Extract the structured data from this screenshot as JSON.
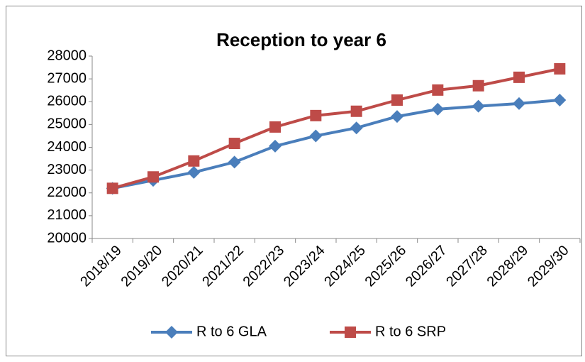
{
  "chart_data": {
    "type": "line",
    "title": "Reception to year 6",
    "categories": [
      "2018/19",
      "2019/20",
      "2020/21",
      "2021/22",
      "2022/23",
      "2023/24",
      "2024/25",
      "2025/26",
      "2026/27",
      "2027/28",
      "2028/29",
      "2029/30"
    ],
    "series": [
      {
        "name": "R to 6 GLA",
        "color": "#4a7ebb",
        "marker": "diamond",
        "values": [
          22200,
          22550,
          22900,
          23350,
          24050,
          24500,
          24850,
          25350,
          25670,
          25800,
          25920,
          26070
        ]
      },
      {
        "name": "R to 6 SRP",
        "color": "#be4b48",
        "marker": "square",
        "values": [
          22200,
          22700,
          23400,
          24170,
          24890,
          25390,
          25580,
          26070,
          26510,
          26700,
          27070,
          27440
        ]
      }
    ],
    "ylim": [
      20000,
      28000
    ],
    "yticks": [
      20000,
      21000,
      22000,
      23000,
      24000,
      25000,
      26000,
      27000,
      28000
    ],
    "grid": false,
    "legend": "bottom"
  }
}
